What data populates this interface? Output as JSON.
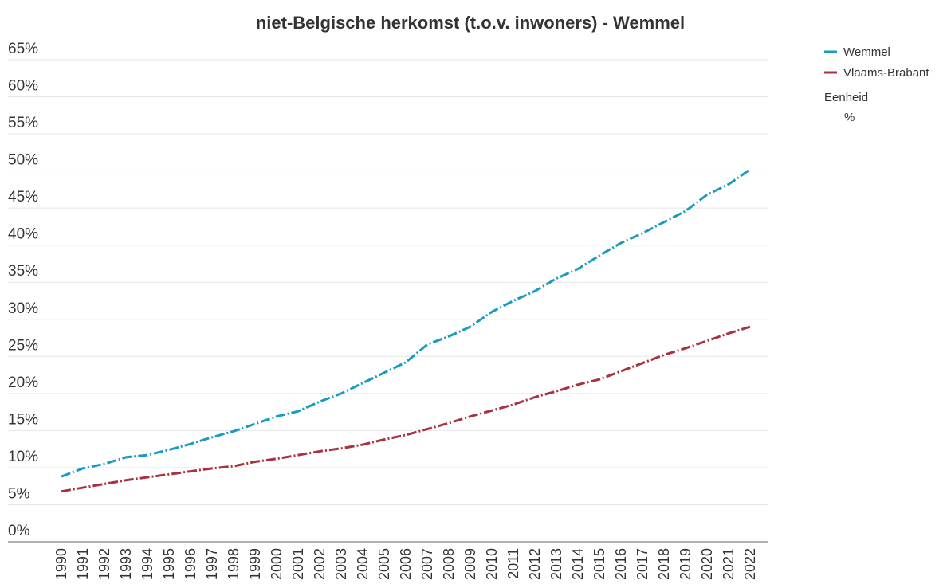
{
  "chart_data": {
    "type": "line",
    "title": "niet-Belgische herkomst (t.o.v. inwoners) - Wemmel",
    "categories": [
      "1990",
      "1991",
      "1992",
      "1993",
      "1994",
      "1995",
      "1996",
      "1997",
      "1998",
      "1999",
      "2000",
      "2001",
      "2002",
      "2003",
      "2004",
      "2005",
      "2006",
      "2007",
      "2008",
      "2009",
      "2010",
      "2011",
      "2012",
      "2013",
      "2014",
      "2015",
      "2016",
      "2017",
      "2018",
      "2019",
      "2020",
      "2021",
      "2022"
    ],
    "series": [
      {
        "name": "Wemmel",
        "color": "#1a9bc0",
        "values": [
          8.8,
          9.9,
          10.5,
          11.4,
          11.7,
          12.4,
          13.2,
          14.1,
          14.9,
          15.9,
          16.9,
          17.6,
          18.9,
          20.0,
          21.4,
          22.8,
          24.2,
          26.6,
          27.7,
          29.0,
          31.0,
          32.5,
          33.8,
          35.5,
          36.8,
          38.6,
          40.3,
          41.6,
          43.1,
          44.6,
          46.8,
          48.2,
          50.2
        ]
      },
      {
        "name": "Vlaams-Brabant",
        "color": "#a8323e",
        "values": [
          6.8,
          7.3,
          7.8,
          8.3,
          8.7,
          9.1,
          9.5,
          9.9,
          10.2,
          10.8,
          11.2,
          11.7,
          12.2,
          12.6,
          13.1,
          13.8,
          14.4,
          15.2,
          16.0,
          16.9,
          17.7,
          18.5,
          19.5,
          20.3,
          21.2,
          21.9,
          23.0,
          24.1,
          25.2,
          26.1,
          27.1,
          28.1,
          29.0
        ]
      }
    ],
    "ylim": [
      0,
      65
    ],
    "yticks": [
      {
        "value": 0,
        "label": "0%"
      },
      {
        "value": 5,
        "label": "5%"
      },
      {
        "value": 10,
        "label": "10%"
      },
      {
        "value": 15,
        "label": "15%"
      },
      {
        "value": 20,
        "label": "20%"
      },
      {
        "value": 25,
        "label": "25%"
      },
      {
        "value": 30,
        "label": "30%"
      },
      {
        "value": 35,
        "label": "35%"
      },
      {
        "value": 40,
        "label": "40%"
      },
      {
        "value": 45,
        "label": "45%"
      },
      {
        "value": 50,
        "label": "50%"
      },
      {
        "value": 55,
        "label": "55%"
      },
      {
        "value": 60,
        "label": "60%"
      },
      {
        "value": 65,
        "label": "65%"
      }
    ],
    "grid": true,
    "legend_title": "Eenheid",
    "legend_unit": "%"
  }
}
